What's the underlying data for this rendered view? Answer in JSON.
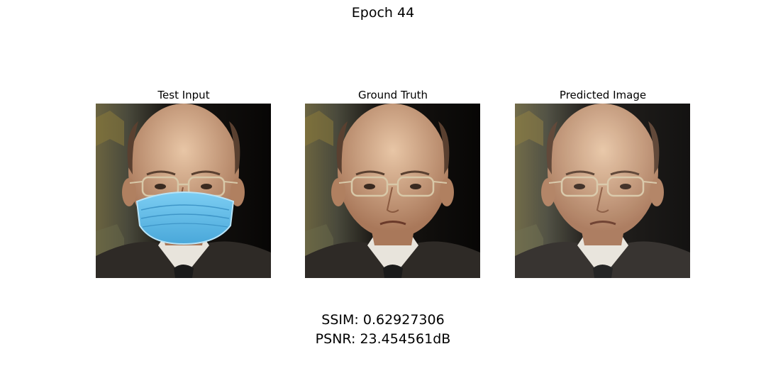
{
  "figure": {
    "title": "Epoch 44"
  },
  "panels": [
    {
      "title": "Test Input",
      "content": "face photo with blue surgical mask"
    },
    {
      "title": "Ground Truth",
      "content": "face photo"
    },
    {
      "title": "Predicted Image",
      "content": "reconstructed face photo"
    }
  ],
  "metrics": {
    "ssim": "SSIM: 0.62927306",
    "psnr": "PSNR: 23.454561dB"
  },
  "colors": {
    "background_dark": "#0b0a09",
    "wall_left": "#5e5a3c",
    "skin": "#b98a68",
    "suit": "#2e2a26",
    "shirt": "#e8e4dc",
    "mask": "#5eb8e6"
  }
}
